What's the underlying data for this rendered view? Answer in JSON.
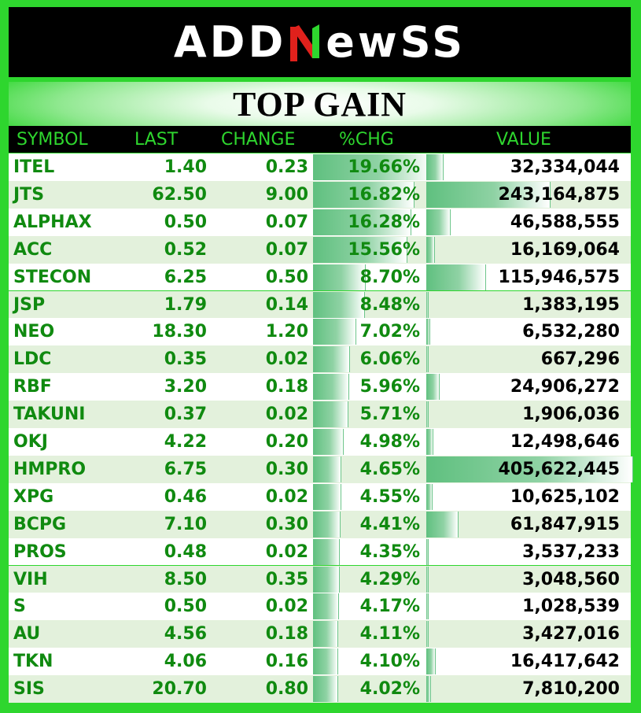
{
  "logo": {
    "text_left": "ADD",
    "text_mid": "N",
    "text_right": "ewSS"
  },
  "title": "TOP GAIN",
  "columns": [
    "SYMBOL",
    "LAST",
    "CHANGE",
    "%CHG",
    "VALUE"
  ],
  "colors": {
    "accent_green": "#2ed62e",
    "text_green": "#108a10",
    "bar_green": "#5fc07f",
    "logo_red": "#e0211c"
  },
  "rows": [
    {
      "symbol": "ITEL",
      "last": "1.40",
      "change": "0.23",
      "pct": "19.66%",
      "value": "32,334,044",
      "pct_num": 19.66,
      "value_num": 32334044
    },
    {
      "symbol": "JTS",
      "last": "62.50",
      "change": "9.00",
      "pct": "16.82%",
      "value": "243,164,875",
      "pct_num": 16.82,
      "value_num": 243164875
    },
    {
      "symbol": "ALPHAX",
      "last": "0.50",
      "change": "0.07",
      "pct": "16.28%",
      "value": "46,588,555",
      "pct_num": 16.28,
      "value_num": 46588555
    },
    {
      "symbol": "ACC",
      "last": "0.52",
      "change": "0.07",
      "pct": "15.56%",
      "value": "16,169,064",
      "pct_num": 15.56,
      "value_num": 16169064
    },
    {
      "symbol": "STECON",
      "last": "6.25",
      "change": "0.50",
      "pct": "8.70%",
      "value": "115,946,575",
      "pct_num": 8.7,
      "value_num": 115946575
    },
    {
      "symbol": "JSP",
      "last": "1.79",
      "change": "0.14",
      "pct": "8.48%",
      "value": "1,383,195",
      "pct_num": 8.48,
      "value_num": 1383195
    },
    {
      "symbol": "NEO",
      "last": "18.30",
      "change": "1.20",
      "pct": "7.02%",
      "value": "6,532,280",
      "pct_num": 7.02,
      "value_num": 6532280
    },
    {
      "symbol": "LDC",
      "last": "0.35",
      "change": "0.02",
      "pct": "6.06%",
      "value": "667,296",
      "pct_num": 6.06,
      "value_num": 667296
    },
    {
      "symbol": "RBF",
      "last": "3.20",
      "change": "0.18",
      "pct": "5.96%",
      "value": "24,906,272",
      "pct_num": 5.96,
      "value_num": 24906272
    },
    {
      "symbol": "TAKUNI",
      "last": "0.37",
      "change": "0.02",
      "pct": "5.71%",
      "value": "1,906,036",
      "pct_num": 5.71,
      "value_num": 1906036
    },
    {
      "symbol": "OKJ",
      "last": "4.22",
      "change": "0.20",
      "pct": "4.98%",
      "value": "12,498,646",
      "pct_num": 4.98,
      "value_num": 12498646
    },
    {
      "symbol": "HMPRO",
      "last": "6.75",
      "change": "0.30",
      "pct": "4.65%",
      "value": "405,622,445",
      "pct_num": 4.65,
      "value_num": 405622445
    },
    {
      "symbol": "XPG",
      "last": "0.46",
      "change": "0.02",
      "pct": "4.55%",
      "value": "10,625,102",
      "pct_num": 4.55,
      "value_num": 10625102
    },
    {
      "symbol": "BCPG",
      "last": "7.10",
      "change": "0.30",
      "pct": "4.41%",
      "value": "61,847,915",
      "pct_num": 4.41,
      "value_num": 61847915
    },
    {
      "symbol": "PROS",
      "last": "0.48",
      "change": "0.02",
      "pct": "4.35%",
      "value": "3,537,233",
      "pct_num": 4.35,
      "value_num": 3537233
    },
    {
      "symbol": "VIH",
      "last": "8.50",
      "change": "0.35",
      "pct": "4.29%",
      "value": "3,048,560",
      "pct_num": 4.29,
      "value_num": 3048560
    },
    {
      "symbol": "S",
      "last": "0.50",
      "change": "0.02",
      "pct": "4.17%",
      "value": "1,028,539",
      "pct_num": 4.17,
      "value_num": 1028539
    },
    {
      "symbol": "AU",
      "last": "4.56",
      "change": "0.18",
      "pct": "4.11%",
      "value": "3,427,016",
      "pct_num": 4.11,
      "value_num": 3427016
    },
    {
      "symbol": "TKN",
      "last": "4.06",
      "change": "0.16",
      "pct": "4.10%",
      "value": "16,417,642",
      "pct_num": 4.1,
      "value_num": 16417642
    },
    {
      "symbol": "SIS",
      "last": "20.70",
      "change": "0.80",
      "pct": "4.02%",
      "value": "7,810,200",
      "pct_num": 4.02,
      "value_num": 7810200
    }
  ]
}
